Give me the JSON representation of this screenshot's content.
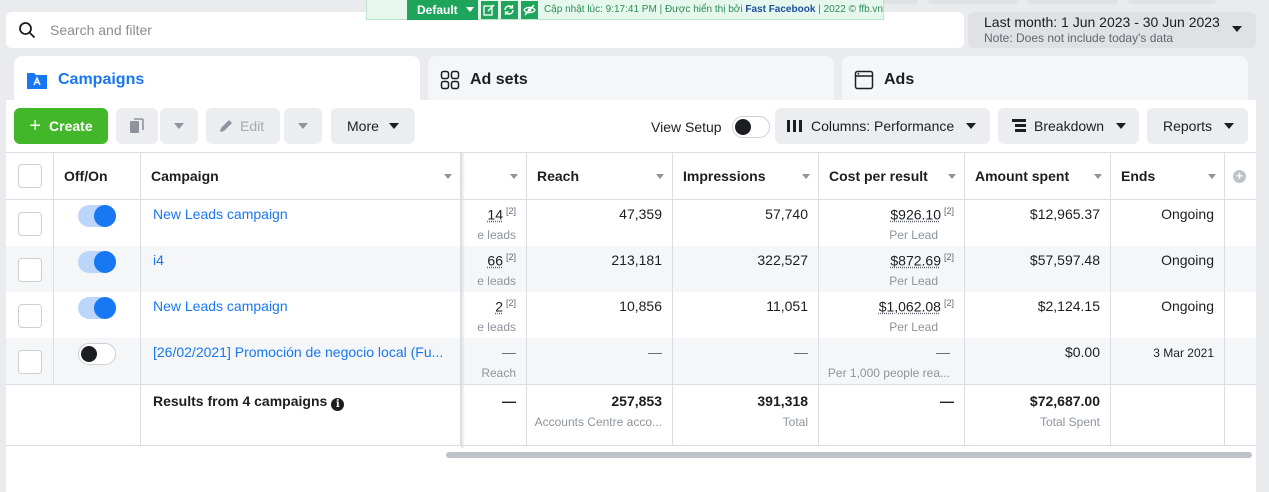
{
  "search": {
    "placeholder": "Search and filter"
  },
  "date_range": {
    "label": "Last month: 1 Jun 2023 - 30 Jun 2023",
    "note": "Note: Does not include today's data"
  },
  "extension": {
    "default_label": "Default",
    "status_prefix": "Cập nhật lúc: 9:17:41 PM | Được hiển thị bởi ",
    "brand": "Fast Facebook",
    "status_suffix": " | 2022 © ffb.vn"
  },
  "tabs": [
    {
      "label": "Campaigns",
      "active": true,
      "icon": "campaign-icon"
    },
    {
      "label": "Ad sets",
      "active": false,
      "icon": "grid-icon"
    },
    {
      "label": "Ads",
      "active": false,
      "icon": "window-icon"
    }
  ],
  "toolbar": {
    "create_label": "Create",
    "edit_label": "Edit",
    "more_label": "More",
    "view_setup_label": "View Setup",
    "columns_label": "Columns: Performance",
    "breakdown_label": "Breakdown",
    "reports_label": "Reports"
  },
  "columns": {
    "off_on": "Off/On",
    "campaign": "Campaign",
    "results": "",
    "reach": "Reach",
    "impressions": "Impressions",
    "cost_per_result": "Cost per result",
    "amount_spent": "Amount spent",
    "ends": "Ends"
  },
  "rows": [
    {
      "on": true,
      "campaign": "New Leads campaign",
      "results": "14",
      "results_sub": "e leads",
      "reach": "47,359",
      "impressions": "57,740",
      "cost": "$926.10",
      "cost_sub": "Per Lead",
      "spent": "$12,965.37",
      "ends": "Ongoing",
      "fn": "[2]"
    },
    {
      "on": true,
      "campaign": "i4",
      "results": "66",
      "results_sub": "e leads",
      "reach": "213,181",
      "impressions": "322,527",
      "cost": "$872.69",
      "cost_sub": "Per Lead",
      "spent": "$57,597.48",
      "ends": "Ongoing",
      "fn": "[2]"
    },
    {
      "on": true,
      "campaign": "New Leads campaign",
      "results": "2",
      "results_sub": "e leads",
      "reach": "10,856",
      "impressions": "11,051",
      "cost": "$1,062.08",
      "cost_sub": "Per Lead",
      "spent": "$2,124.15",
      "ends": "Ongoing",
      "fn": "[2]"
    },
    {
      "on": false,
      "campaign": "[26/02/2021] Promoción de negocio local (Fu...",
      "results": "—",
      "results_sub": "Reach",
      "reach": "—",
      "impressions": "—",
      "cost": "—",
      "cost_sub": "Per 1,000 people rea...",
      "spent": "$0.00",
      "ends": "3 Mar 2021",
      "fn": ""
    }
  ],
  "totals": {
    "label": "Results from 4 campaigns",
    "results": "—",
    "reach": "257,853",
    "reach_sub": "Accounts Centre acco...",
    "impressions": "391,318",
    "impressions_sub": "Total",
    "cost": "—",
    "spent": "$72,687.00",
    "spent_sub": "Total Spent"
  }
}
